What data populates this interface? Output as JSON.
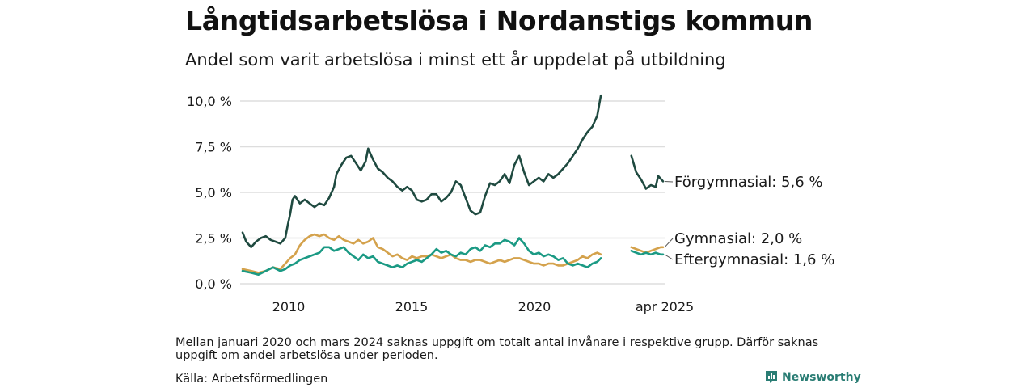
{
  "header": {
    "title": "Långtidsarbetslösa i Nordanstigs kommun",
    "subtitle": "Andel som varit arbetslösa i minst ett år uppdelat på utbildning"
  },
  "footer": {
    "note": "Mellan januari 2020 och mars 2024 saknas uppgift om totalt antal invånare i respektive grupp. Därför saknas uppgift om andel arbetslösa under perioden.",
    "source": "Källa: Arbetsförmedlingen",
    "brand": "Newsworthy"
  },
  "colors": {
    "forgymnasial": "#1f4a40",
    "gymnasial": "#d4a24c",
    "eftergymnasial": "#1b9a84",
    "grid": "#dddddd",
    "brand": "#2a7d74"
  },
  "chart_data": {
    "type": "line",
    "x_ticks": [
      "2010",
      "2015",
      "2020",
      "apr 2025"
    ],
    "y_ticks": [
      "0,0 %",
      "2,5 %",
      "5,0 %",
      "7,5 %",
      "10,0 %"
    ],
    "ylim": [
      0,
      10.5
    ],
    "grid": true,
    "series": [
      {
        "name": "Förgymnasial",
        "end_label": "Förgymnasial: 5,6 %",
        "color": "#1f4a40",
        "segments": [
          [
            [
              2008.25,
              2.8
            ],
            [
              2008.4,
              2.3
            ],
            [
              2008.6,
              2.0
            ],
            [
              2008.8,
              2.3
            ],
            [
              2009.0,
              2.5
            ],
            [
              2009.2,
              2.6
            ],
            [
              2009.4,
              2.4
            ],
            [
              2009.6,
              2.3
            ],
            [
              2009.8,
              2.2
            ],
            [
              2010.0,
              2.5
            ],
            [
              2010.1,
              3.2
            ],
            [
              2010.2,
              3.8
            ],
            [
              2010.3,
              4.6
            ],
            [
              2010.4,
              4.8
            ],
            [
              2010.6,
              4.4
            ],
            [
              2010.8,
              4.6
            ],
            [
              2011.0,
              4.4
            ],
            [
              2011.2,
              4.2
            ],
            [
              2011.4,
              4.4
            ],
            [
              2011.6,
              4.3
            ],
            [
              2011.8,
              4.7
            ],
            [
              2012.0,
              5.3
            ],
            [
              2012.1,
              6.0
            ],
            [
              2012.3,
              6.5
            ],
            [
              2012.5,
              6.9
            ],
            [
              2012.7,
              7.0
            ],
            [
              2012.9,
              6.6
            ],
            [
              2013.1,
              6.2
            ],
            [
              2013.3,
              6.7
            ],
            [
              2013.4,
              7.4
            ],
            [
              2013.6,
              6.8
            ],
            [
              2013.8,
              6.3
            ],
            [
              2014.0,
              6.1
            ],
            [
              2014.2,
              5.8
            ],
            [
              2014.4,
              5.6
            ],
            [
              2014.6,
              5.3
            ],
            [
              2014.8,
              5.1
            ],
            [
              2015.0,
              5.3
            ],
            [
              2015.2,
              5.1
            ],
            [
              2015.4,
              4.6
            ],
            [
              2015.6,
              4.5
            ],
            [
              2015.8,
              4.6
            ],
            [
              2016.0,
              4.9
            ],
            [
              2016.2,
              4.9
            ],
            [
              2016.4,
              4.5
            ],
            [
              2016.6,
              4.7
            ],
            [
              2016.8,
              5.0
            ],
            [
              2017.0,
              5.6
            ],
            [
              2017.2,
              5.4
            ],
            [
              2017.4,
              4.7
            ],
            [
              2017.6,
              4.0
            ],
            [
              2017.8,
              3.8
            ],
            [
              2018.0,
              3.9
            ],
            [
              2018.2,
              4.8
            ],
            [
              2018.4,
              5.5
            ],
            [
              2018.6,
              5.4
            ],
            [
              2018.8,
              5.6
            ],
            [
              2019.0,
              6.0
            ],
            [
              2019.2,
              5.5
            ],
            [
              2019.4,
              6.5
            ],
            [
              2019.6,
              7.0
            ],
            [
              2019.8,
              6.1
            ],
            [
              2020.0,
              5.4
            ],
            [
              2020.2,
              5.6
            ],
            [
              2020.4,
              5.8
            ],
            [
              2020.6,
              5.6
            ],
            [
              2020.8,
              6.0
            ],
            [
              2021.0,
              5.8
            ],
            [
              2021.2,
              6.0
            ],
            [
              2021.4,
              6.3
            ],
            [
              2021.6,
              6.6
            ],
            [
              2021.8,
              7.0
            ],
            [
              2022.0,
              7.4
            ],
            [
              2022.2,
              7.9
            ],
            [
              2022.4,
              8.3
            ],
            [
              2022.6,
              8.6
            ],
            [
              2022.8,
              9.2
            ],
            [
              2022.95,
              10.3
            ]
          ],
          [
            [
              2024.2,
              7.0
            ],
            [
              2024.4,
              6.1
            ],
            [
              2024.6,
              5.7
            ],
            [
              2024.8,
              5.2
            ],
            [
              2025.0,
              5.4
            ],
            [
              2025.2,
              5.3
            ],
            [
              2025.3,
              5.9
            ],
            [
              2025.5,
              5.6
            ]
          ]
        ]
      },
      {
        "name": "Gymnasial",
        "end_label": "Gymnasial: 2,0 %",
        "color": "#d4a24c",
        "segments": [
          [
            [
              2008.25,
              0.8
            ],
            [
              2008.6,
              0.7
            ],
            [
              2008.9,
              0.6
            ],
            [
              2009.2,
              0.7
            ],
            [
              2009.5,
              0.9
            ],
            [
              2009.8,
              0.8
            ],
            [
              2010.0,
              1.1
            ],
            [
              2010.2,
              1.4
            ],
            [
              2010.4,
              1.6
            ],
            [
              2010.6,
              2.1
            ],
            [
              2010.8,
              2.4
            ],
            [
              2011.0,
              2.6
            ],
            [
              2011.2,
              2.7
            ],
            [
              2011.4,
              2.6
            ],
            [
              2011.6,
              2.7
            ],
            [
              2011.8,
              2.5
            ],
            [
              2012.0,
              2.4
            ],
            [
              2012.2,
              2.6
            ],
            [
              2012.4,
              2.4
            ],
            [
              2012.6,
              2.3
            ],
            [
              2012.8,
              2.2
            ],
            [
              2013.0,
              2.4
            ],
            [
              2013.2,
              2.2
            ],
            [
              2013.4,
              2.3
            ],
            [
              2013.6,
              2.5
            ],
            [
              2013.8,
              2.0
            ],
            [
              2014.0,
              1.9
            ],
            [
              2014.2,
              1.7
            ],
            [
              2014.4,
              1.5
            ],
            [
              2014.6,
              1.6
            ],
            [
              2014.8,
              1.4
            ],
            [
              2015.0,
              1.3
            ],
            [
              2015.2,
              1.5
            ],
            [
              2015.4,
              1.4
            ],
            [
              2015.6,
              1.5
            ],
            [
              2015.8,
              1.5
            ],
            [
              2016.0,
              1.6
            ],
            [
              2016.2,
              1.5
            ],
            [
              2016.4,
              1.4
            ],
            [
              2016.6,
              1.5
            ],
            [
              2016.8,
              1.6
            ],
            [
              2017.0,
              1.4
            ],
            [
              2017.2,
              1.3
            ],
            [
              2017.4,
              1.3
            ],
            [
              2017.6,
              1.2
            ],
            [
              2017.8,
              1.3
            ],
            [
              2018.0,
              1.3
            ],
            [
              2018.2,
              1.2
            ],
            [
              2018.4,
              1.1
            ],
            [
              2018.6,
              1.2
            ],
            [
              2018.8,
              1.3
            ],
            [
              2019.0,
              1.2
            ],
            [
              2019.2,
              1.3
            ],
            [
              2019.4,
              1.4
            ],
            [
              2019.6,
              1.4
            ],
            [
              2019.8,
              1.3
            ],
            [
              2020.0,
              1.2
            ],
            [
              2020.2,
              1.1
            ],
            [
              2020.4,
              1.1
            ],
            [
              2020.6,
              1.0
            ],
            [
              2020.8,
              1.1
            ],
            [
              2021.0,
              1.1
            ],
            [
              2021.2,
              1.0
            ],
            [
              2021.4,
              1.0
            ],
            [
              2021.6,
              1.1
            ],
            [
              2021.8,
              1.2
            ],
            [
              2022.0,
              1.3
            ],
            [
              2022.2,
              1.5
            ],
            [
              2022.4,
              1.4
            ],
            [
              2022.6,
              1.6
            ],
            [
              2022.8,
              1.7
            ],
            [
              2022.95,
              1.6
            ]
          ],
          [
            [
              2024.2,
              2.0
            ],
            [
              2024.4,
              1.9
            ],
            [
              2024.6,
              1.8
            ],
            [
              2024.8,
              1.7
            ],
            [
              2025.0,
              1.8
            ],
            [
              2025.2,
              1.9
            ],
            [
              2025.4,
              2.0
            ],
            [
              2025.5,
              2.0
            ]
          ]
        ]
      },
      {
        "name": "Eftergymnasial",
        "end_label": "Eftergymnasial: 1,6 %",
        "color": "#1b9a84",
        "segments": [
          [
            [
              2008.25,
              0.7
            ],
            [
              2008.6,
              0.6
            ],
            [
              2008.9,
              0.5
            ],
            [
              2009.2,
              0.7
            ],
            [
              2009.5,
              0.9
            ],
            [
              2009.8,
              0.7
            ],
            [
              2010.0,
              0.8
            ],
            [
              2010.2,
              1.0
            ],
            [
              2010.4,
              1.1
            ],
            [
              2010.6,
              1.3
            ],
            [
              2010.8,
              1.4
            ],
            [
              2011.0,
              1.5
            ],
            [
              2011.2,
              1.6
            ],
            [
              2011.4,
              1.7
            ],
            [
              2011.6,
              2.0
            ],
            [
              2011.8,
              2.0
            ],
            [
              2012.0,
              1.8
            ],
            [
              2012.2,
              1.9
            ],
            [
              2012.4,
              2.0
            ],
            [
              2012.6,
              1.7
            ],
            [
              2012.8,
              1.5
            ],
            [
              2013.0,
              1.3
            ],
            [
              2013.2,
              1.6
            ],
            [
              2013.4,
              1.4
            ],
            [
              2013.6,
              1.5
            ],
            [
              2013.8,
              1.2
            ],
            [
              2014.0,
              1.1
            ],
            [
              2014.2,
              1.0
            ],
            [
              2014.4,
              0.9
            ],
            [
              2014.6,
              1.0
            ],
            [
              2014.8,
              0.9
            ],
            [
              2015.0,
              1.1
            ],
            [
              2015.2,
              1.2
            ],
            [
              2015.4,
              1.3
            ],
            [
              2015.6,
              1.2
            ],
            [
              2015.8,
              1.4
            ],
            [
              2016.0,
              1.6
            ],
            [
              2016.2,
              1.9
            ],
            [
              2016.4,
              1.7
            ],
            [
              2016.6,
              1.8
            ],
            [
              2016.8,
              1.6
            ],
            [
              2017.0,
              1.5
            ],
            [
              2017.2,
              1.7
            ],
            [
              2017.4,
              1.6
            ],
            [
              2017.6,
              1.9
            ],
            [
              2017.8,
              2.0
            ],
            [
              2018.0,
              1.8
            ],
            [
              2018.2,
              2.1
            ],
            [
              2018.4,
              2.0
            ],
            [
              2018.6,
              2.2
            ],
            [
              2018.8,
              2.2
            ],
            [
              2019.0,
              2.4
            ],
            [
              2019.2,
              2.3
            ],
            [
              2019.4,
              2.1
            ],
            [
              2019.6,
              2.5
            ],
            [
              2019.8,
              2.2
            ],
            [
              2020.0,
              1.8
            ],
            [
              2020.2,
              1.6
            ],
            [
              2020.4,
              1.7
            ],
            [
              2020.6,
              1.5
            ],
            [
              2020.8,
              1.6
            ],
            [
              2021.0,
              1.5
            ],
            [
              2021.2,
              1.3
            ],
            [
              2021.4,
              1.4
            ],
            [
              2021.6,
              1.1
            ],
            [
              2021.8,
              1.0
            ],
            [
              2022.0,
              1.1
            ],
            [
              2022.2,
              1.0
            ],
            [
              2022.4,
              0.9
            ],
            [
              2022.6,
              1.1
            ],
            [
              2022.8,
              1.2
            ],
            [
              2022.95,
              1.4
            ]
          ],
          [
            [
              2024.2,
              1.8
            ],
            [
              2024.4,
              1.7
            ],
            [
              2024.6,
              1.6
            ],
            [
              2024.8,
              1.7
            ],
            [
              2025.0,
              1.6
            ],
            [
              2025.2,
              1.7
            ],
            [
              2025.4,
              1.6
            ],
            [
              2025.5,
              1.6
            ]
          ]
        ]
      }
    ]
  }
}
